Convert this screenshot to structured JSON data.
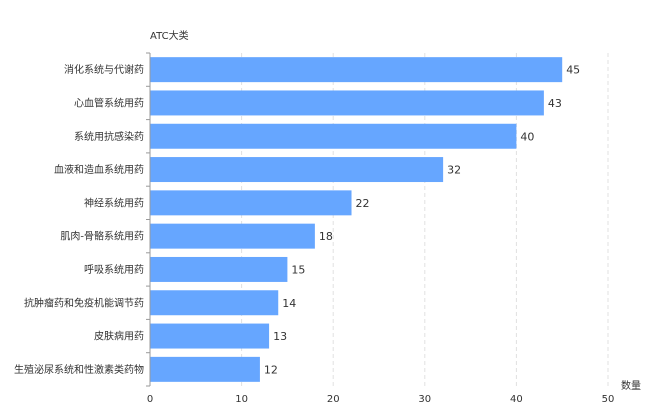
{
  "chart_data": {
    "type": "bar",
    "orientation": "horizontal",
    "title": "",
    "ylabel": "ATC大类",
    "xlabel": "数量",
    "categories": [
      "消化系统与代谢药",
      "心血管系统用药",
      "系统用抗感染药",
      "血液和造血系统用药",
      "神经系统用药",
      "肌肉-骨骼系统用药",
      "呼吸系统用药",
      "抗肿瘤药和免疫机能调节药",
      "皮肤病用药",
      "生殖泌尿系统和性激素类药物"
    ],
    "values": [
      45,
      43,
      40,
      32,
      22,
      18,
      15,
      14,
      13,
      12
    ],
    "xlim": [
      0,
      50
    ],
    "xticks": [
      0,
      10,
      20,
      30,
      40,
      50
    ],
    "grid": "vertical-dashed",
    "legend": "none",
    "bar_color": "#66a6ff",
    "grid_color": "#e0e0e0",
    "axis_color": "#999999"
  }
}
